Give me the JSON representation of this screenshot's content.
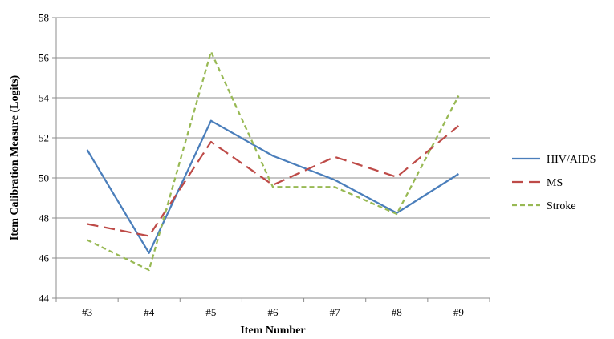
{
  "chart_data": {
    "type": "line",
    "title": "",
    "xlabel": "Item Number",
    "ylabel": "Item Calibration Measure (Logits)",
    "categories": [
      "#3",
      "#4",
      "#5",
      "#6",
      "#7",
      "#8",
      "#9"
    ],
    "ylim": [
      44,
      58
    ],
    "yticks": [
      44,
      46,
      48,
      50,
      52,
      54,
      56,
      58
    ],
    "grid": true,
    "legend_position": "right",
    "series": [
      {
        "name": "HIV/AIDS",
        "color": "#4a7ebb",
        "dash": "solid",
        "values": [
          51.4,
          46.25,
          52.85,
          51.1,
          49.9,
          48.25,
          50.2
        ]
      },
      {
        "name": "MS",
        "color": "#be4b48",
        "dash": "long-dash",
        "values": [
          47.7,
          47.1,
          51.8,
          49.65,
          51.05,
          50.05,
          52.6
        ]
      },
      {
        "name": "Stroke",
        "color": "#98b954",
        "dash": "short-dash",
        "values": [
          46.9,
          45.4,
          56.3,
          49.55,
          49.55,
          48.2,
          54.1
        ]
      }
    ]
  }
}
